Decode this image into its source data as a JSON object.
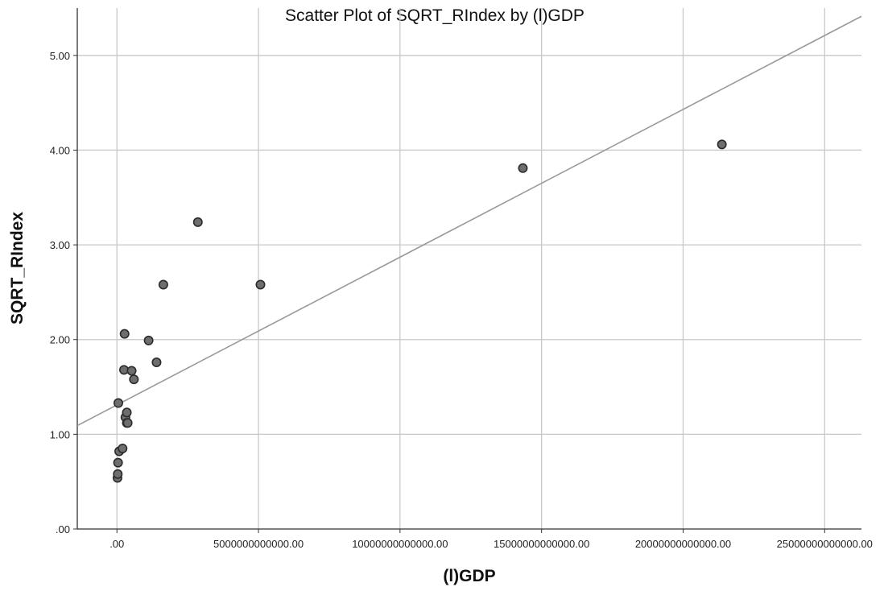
{
  "chart_data": {
    "type": "scatter",
    "title": "Scatter Plot of SQRT_RIndex by (l)GDP",
    "xlabel": "(l)GDP",
    "ylabel": "SQRT_RIndex",
    "xlim": [
      -1400000000000,
      26300000000000
    ],
    "ylim": [
      0,
      5.5
    ],
    "x_ticks": [
      0,
      5000000000000,
      10000000000000,
      15000000000000,
      20000000000000,
      25000000000000
    ],
    "x_tick_labels": [
      ".00",
      "5000000000000.00",
      "10000000000000.00",
      "15000000000000.00",
      "20000000000000.00",
      "25000000000000.00"
    ],
    "y_ticks": [
      0,
      1,
      2,
      3,
      4,
      5
    ],
    "y_tick_labels": [
      ".00",
      "1.00",
      "2.00",
      "3.00",
      "4.00",
      "5.00"
    ],
    "grid": true,
    "fit_line": {
      "intercept": 1.31,
      "slope": 1.56e-13
    },
    "points": [
      {
        "x": 20000000000,
        "y": 0.54
      },
      {
        "x": 30000000000,
        "y": 0.58
      },
      {
        "x": 40000000000,
        "y": 0.7
      },
      {
        "x": 80000000000,
        "y": 0.82
      },
      {
        "x": 200000000000,
        "y": 0.85
      },
      {
        "x": 50000000000,
        "y": 1.33
      },
      {
        "x": 300000000000,
        "y": 1.18
      },
      {
        "x": 350000000000,
        "y": 1.23
      },
      {
        "x": 350000000000,
        "y": 1.12
      },
      {
        "x": 380000000000,
        "y": 1.12
      },
      {
        "x": 250000000000,
        "y": 1.68
      },
      {
        "x": 520000000000,
        "y": 1.67
      },
      {
        "x": 600000000000,
        "y": 1.58
      },
      {
        "x": 270000000000,
        "y": 2.06
      },
      {
        "x": 1120000000000,
        "y": 1.99
      },
      {
        "x": 1400000000000,
        "y": 1.76
      },
      {
        "x": 1640000000000,
        "y": 2.58
      },
      {
        "x": 2860000000000,
        "y": 3.24
      },
      {
        "x": 5070000000000,
        "y": 2.58
      },
      {
        "x": 14340000000000,
        "y": 3.81
      },
      {
        "x": 21370000000000,
        "y": 4.06
      }
    ]
  }
}
